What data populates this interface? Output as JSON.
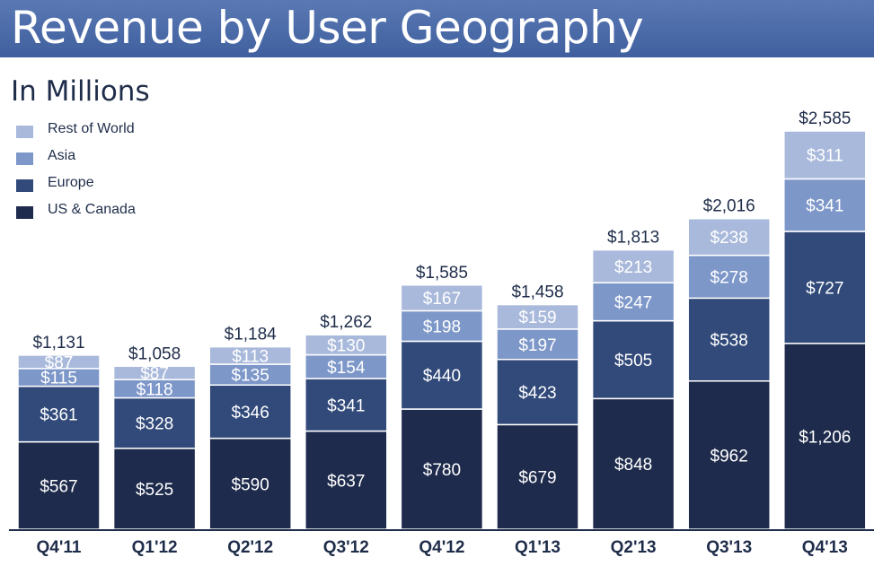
{
  "header": {
    "title": "Revenue by User Geography",
    "subtitle": "In Millions"
  },
  "colors": {
    "US & Canada": "#1e2b4c",
    "Europe": "#324a7a",
    "Asia": "#7d97c9",
    "Rest of World": "#a9b9db",
    "text_dark": "#1f2d4a",
    "axis": "#1f2d4a"
  },
  "chart_data": {
    "type": "bar",
    "stacked": true,
    "title": "Revenue by User Geography",
    "subtitle": "In Millions",
    "categories": [
      "Q4'11",
      "Q1'12",
      "Q2'12",
      "Q3'12",
      "Q4'12",
      "Q1'13",
      "Q2'13",
      "Q3'13",
      "Q4'13"
    ],
    "series": [
      {
        "name": "US & Canada",
        "values": [
          567,
          525,
          590,
          637,
          780,
          679,
          848,
          962,
          1206
        ],
        "labels": [
          "$567",
          "$525",
          "$590",
          "$637",
          "$780",
          "$679",
          "$848",
          "$962",
          "$1,206"
        ]
      },
      {
        "name": "Europe",
        "values": [
          361,
          328,
          346,
          341,
          440,
          423,
          505,
          538,
          727
        ],
        "labels": [
          "$361",
          "$328",
          "$346",
          "$341",
          "$440",
          "$423",
          "$505",
          "$538",
          "$727"
        ]
      },
      {
        "name": "Asia",
        "values": [
          115,
          118,
          135,
          154,
          198,
          197,
          247,
          278,
          341
        ],
        "labels": [
          "$115",
          "$118",
          "$135",
          "$154",
          "$198",
          "$197",
          "$247",
          "$278",
          "$341"
        ]
      },
      {
        "name": "Rest of World",
        "values": [
          87,
          87,
          113,
          130,
          167,
          159,
          213,
          238,
          311
        ],
        "labels": [
          "$87",
          "$87",
          "$113",
          "$130",
          "$167",
          "$159",
          "$213",
          "$238",
          "$311"
        ]
      }
    ],
    "totals": [
      1131,
      1058,
      1184,
      1262,
      1585,
      1458,
      1813,
      2016,
      2585
    ],
    "total_labels": [
      "$1,131",
      "$1,058",
      "$1,184",
      "$1,262",
      "$1,585",
      "$1,458",
      "$1,813",
      "$2,016",
      "$2,585"
    ],
    "legend": [
      "Rest of World",
      "Asia",
      "Europe",
      "US & Canada"
    ],
    "legend_position": "top-left",
    "ylim": [
      0,
      2585
    ],
    "grid": false
  }
}
